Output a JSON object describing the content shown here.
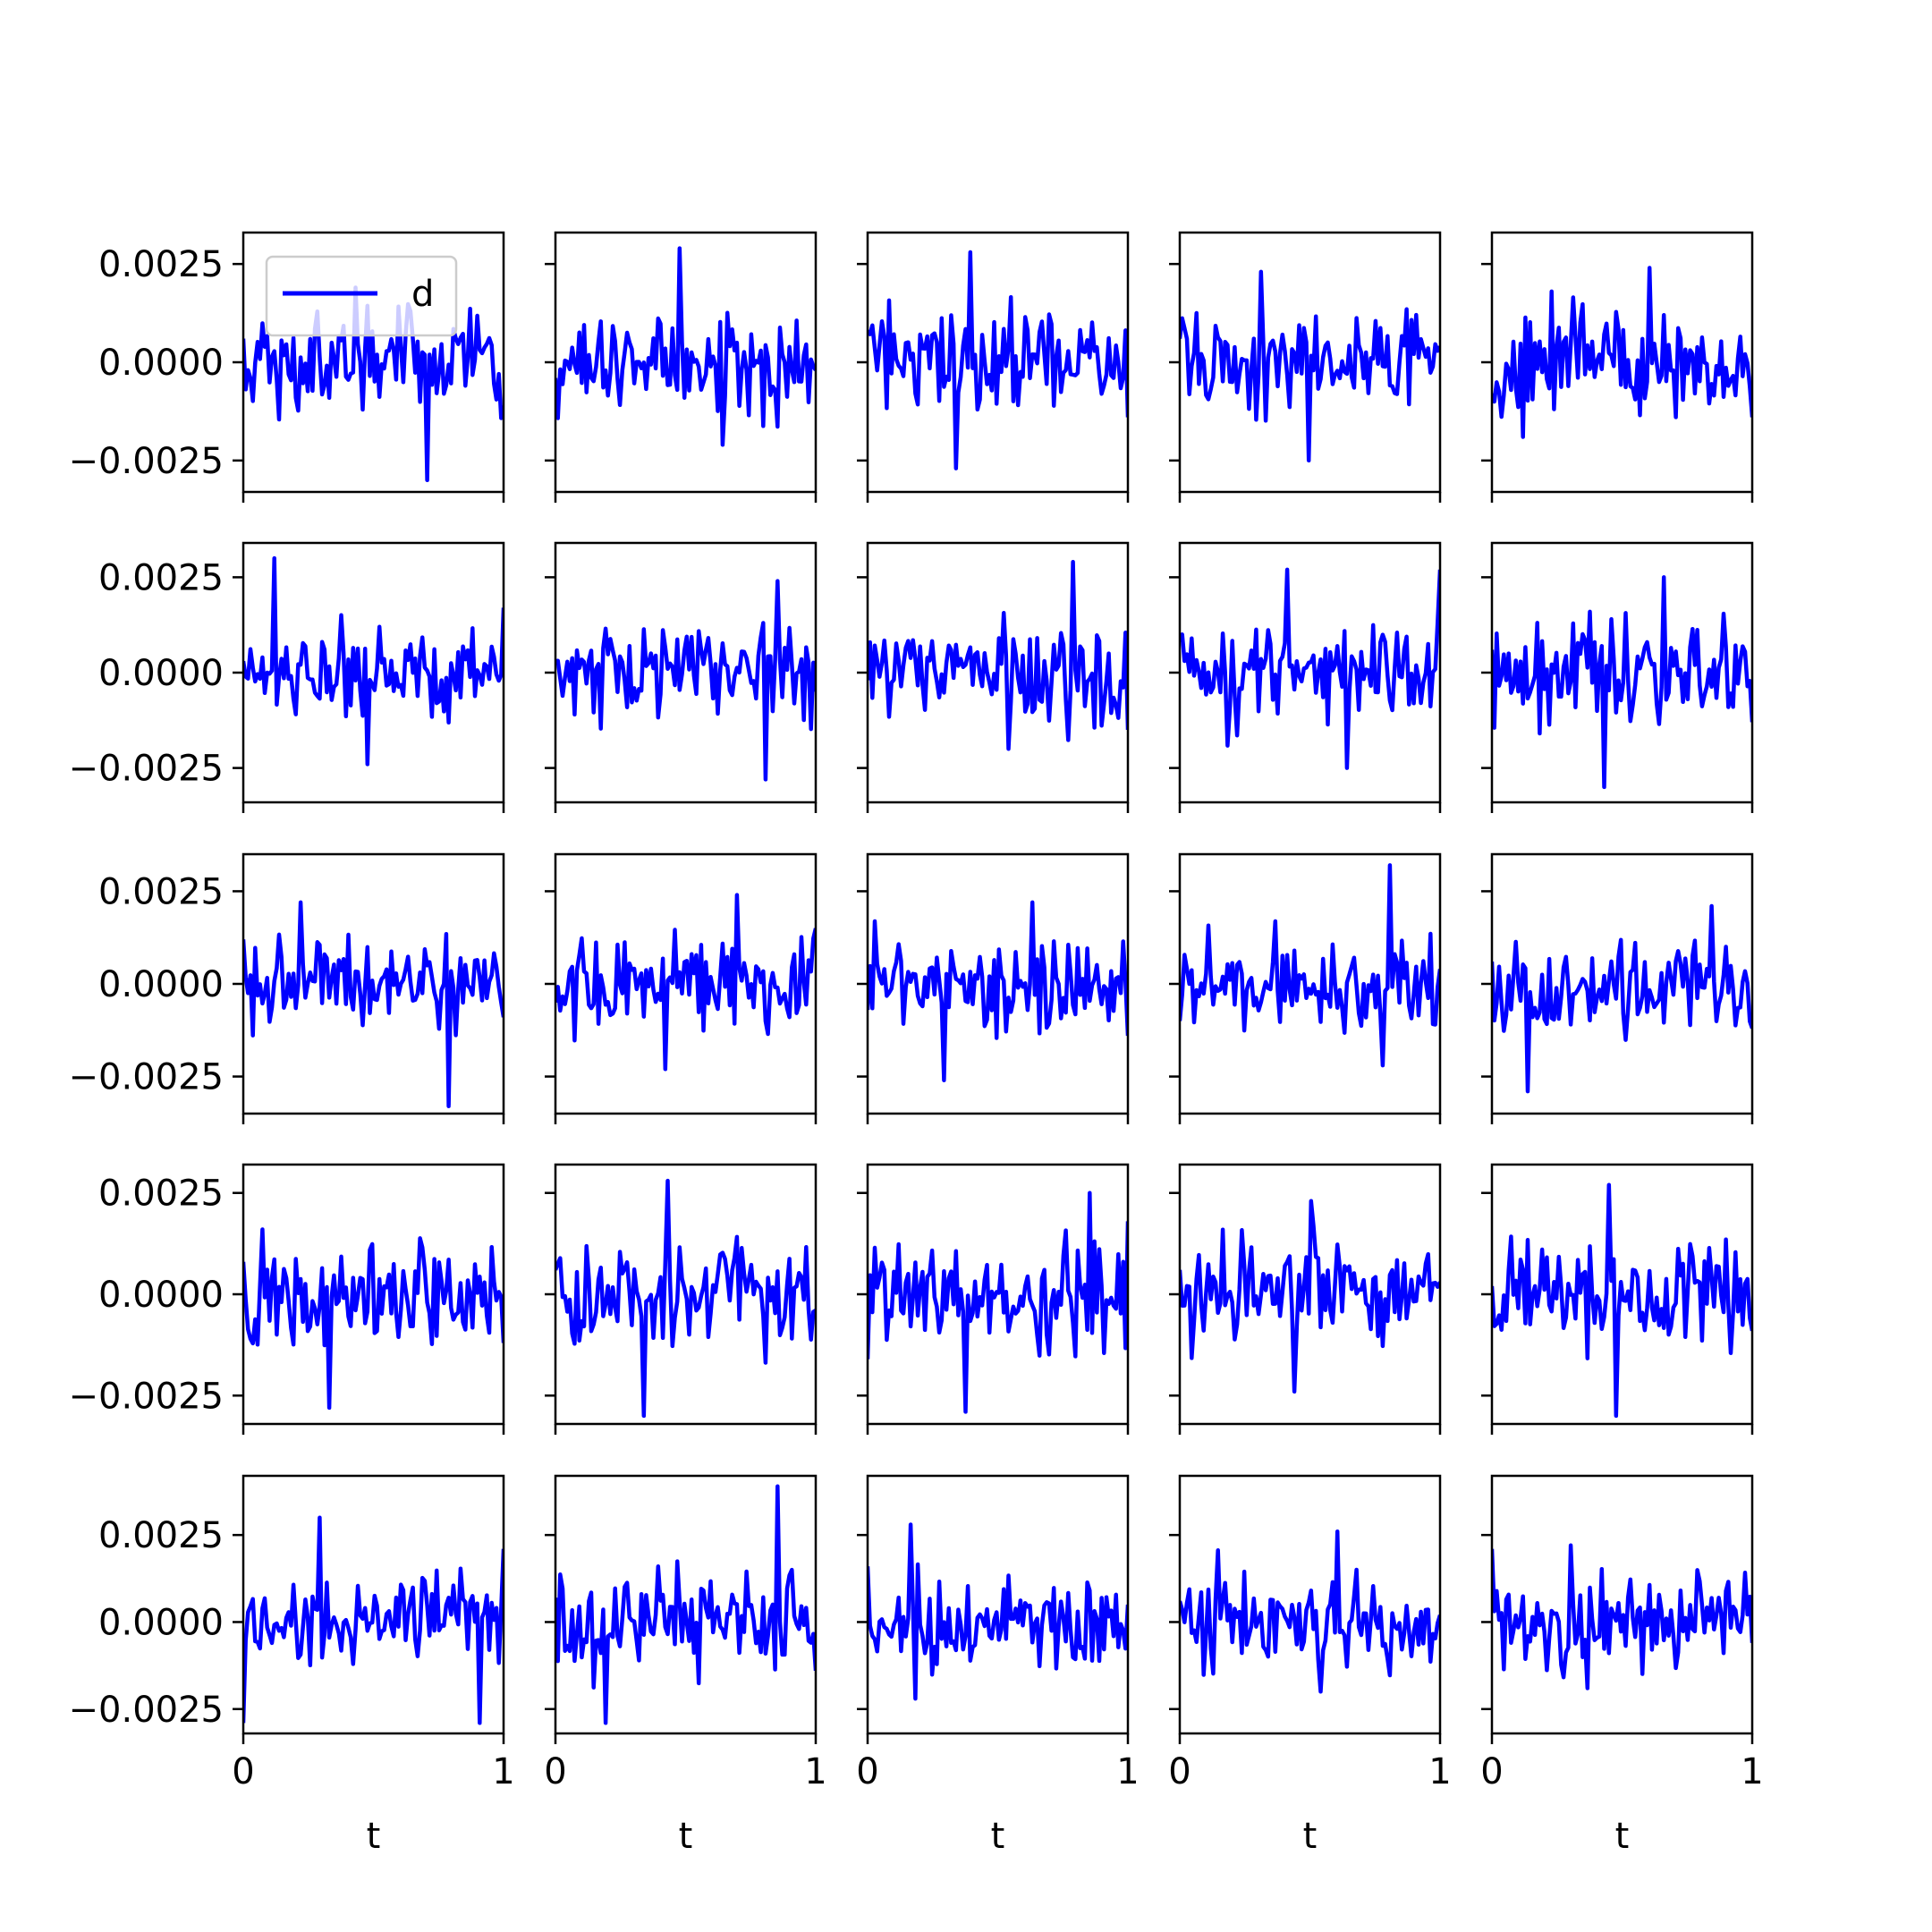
{
  "figure": {
    "rows": 5,
    "cols": 5,
    "sharex": true,
    "sharey": "row",
    "line_color": "#0000ff",
    "axes_color": "#000000",
    "background": "#ffffff",
    "legend": {
      "label": "d",
      "location": "upper-left",
      "subplot": "row 1, column 1"
    }
  },
  "chart_data": {
    "type": "line",
    "description_of_values": "Each subplot shows noise-like series d(t) sampled on t in [0, 1]; summary points below are approximate values read from the figure.",
    "xlabel": "t",
    "xlim": [
      0,
      1
    ],
    "x_ticks": [
      "0",
      "1"
    ],
    "rows": [
      {
        "ylim": [
          -0.0033,
          0.0033
        ],
        "y_ticks": [
          {
            "value": 0.0025,
            "label": "0.0025"
          },
          {
            "value": 0.0,
            "label": "0.0000"
          },
          {
            "value": -0.0025,
            "label": "−0.0025"
          }
        ],
        "panels": [
          {
            "series": [
              {
                "name": "d",
                "max": 0.0019,
                "min": -0.003,
                "start": 0.0006,
                "end": -0.0011
              }
            ]
          },
          {
            "series": [
              {
                "max": 0.0029,
                "min": -0.0021,
                "start": -0.0004,
                "end": -0.0002
              }
            ]
          },
          {
            "series": [
              {
                "max": 0.0028,
                "min": -0.0027,
                "start": 0.0008,
                "end": -0.0014
              }
            ]
          },
          {
            "series": [
              {
                "max": 0.0023,
                "min": -0.0025,
                "start": 0.0006,
                "end": 0.0004
              }
            ]
          },
          {
            "series": [
              {
                "max": 0.0024,
                "min": -0.0019,
                "start": -0.0008,
                "end": -0.0014
              }
            ]
          }
        ]
      },
      {
        "ylim": [
          -0.0034,
          0.0034
        ],
        "y_ticks": [
          {
            "value": 0.0025,
            "label": "0.0025"
          },
          {
            "value": 0.0,
            "label": "0.0000"
          },
          {
            "value": -0.0025,
            "label": "−0.0025"
          }
        ],
        "panels": [
          {
            "series": [
              {
                "max": 0.003,
                "min": -0.0024,
                "start": 0.0003,
                "end": 0.0017
              }
            ]
          },
          {
            "series": [
              {
                "max": 0.0024,
                "min": -0.0028,
                "start": 0.0003,
                "end": -0.0005
              }
            ]
          },
          {
            "series": [
              {
                "max": 0.0029,
                "min": -0.002,
                "start": -0.0002,
                "end": -0.0015
              }
            ]
          },
          {
            "series": [
              {
                "max": 0.0027,
                "min": -0.0025,
                "start": 0.0008,
                "end": 0.0027
              }
            ]
          },
          {
            "series": [
              {
                "max": 0.0025,
                "min": -0.003,
                "start": 0.0006,
                "end": -0.0013
              }
            ]
          }
        ]
      },
      {
        "ylim": [
          -0.0035,
          0.0035
        ],
        "y_ticks": [
          {
            "value": 0.0025,
            "label": "0.0025"
          },
          {
            "value": 0.0,
            "label": "0.0000"
          },
          {
            "value": -0.0025,
            "label": "−0.0025"
          }
        ],
        "panels": [
          {
            "series": [
              {
                "max": 0.0022,
                "min": -0.0033,
                "start": 0.0012,
                "end": -0.0009
              }
            ]
          },
          {
            "series": [
              {
                "max": 0.0024,
                "min": -0.0023,
                "start": -0.0005,
                "end": 0.0015
              }
            ]
          },
          {
            "series": [
              {
                "max": 0.0022,
                "min": -0.0026,
                "start": -0.0007,
                "end": -0.0014
              }
            ]
          },
          {
            "series": [
              {
                "max": 0.0032,
                "min": -0.0022,
                "start": -0.001,
                "end": 0.0004
              }
            ]
          },
          {
            "series": [
              {
                "max": 0.0021,
                "min": -0.0029,
                "start": 0.0006,
                "end": -0.0012
              }
            ]
          }
        ]
      },
      {
        "ylim": [
          -0.0032,
          0.0032
        ],
        "y_ticks": [
          {
            "value": 0.0025,
            "label": "0.0025"
          },
          {
            "value": 0.0,
            "label": "0.0000"
          },
          {
            "value": -0.0025,
            "label": "−0.0025"
          }
        ],
        "panels": [
          {
            "series": [
              {
                "max": 0.0016,
                "min": -0.0028,
                "start": 0.0008,
                "end": -0.0012
              }
            ]
          },
          {
            "series": [
              {
                "max": 0.0028,
                "min": -0.003,
                "start": 0.0006,
                "end": -0.0004
              }
            ]
          },
          {
            "series": [
              {
                "max": 0.0025,
                "min": -0.0029,
                "start": -0.0016,
                "end": 0.0018
              }
            ]
          },
          {
            "series": [
              {
                "max": 0.0023,
                "min": -0.0024,
                "start": 0.0006,
                "end": 0.0003
              }
            ]
          },
          {
            "series": [
              {
                "max": 0.0027,
                "min": -0.003,
                "start": 0.0002,
                "end": -0.0009
              }
            ]
          }
        ]
      },
      {
        "ylim": [
          -0.0032,
          0.0042
        ],
        "y_ticks": [
          {
            "value": 0.0025,
            "label": "0.0025"
          },
          {
            "value": 0.0,
            "label": "0.0000"
          },
          {
            "value": -0.0025,
            "label": "−0.0025"
          }
        ],
        "panels": [
          {
            "series": [
              {
                "max": 0.003,
                "min": -0.0029,
                "start": -0.0029,
                "end": 0.0021
              }
            ]
          },
          {
            "series": [
              {
                "max": 0.0039,
                "min": -0.0029,
                "start": 0.0007,
                "end": -0.0014
              }
            ]
          },
          {
            "series": [
              {
                "max": 0.0028,
                "min": -0.0022,
                "start": 0.0016,
                "end": 0.0005
              }
            ]
          },
          {
            "series": [
              {
                "max": 0.0026,
                "min": -0.002,
                "start": 0.0006,
                "end": 0.0002
              }
            ]
          },
          {
            "series": [
              {
                "max": 0.0022,
                "min": -0.0019,
                "start": 0.0021,
                "end": -0.0006
              }
            ]
          }
        ]
      }
    ]
  }
}
